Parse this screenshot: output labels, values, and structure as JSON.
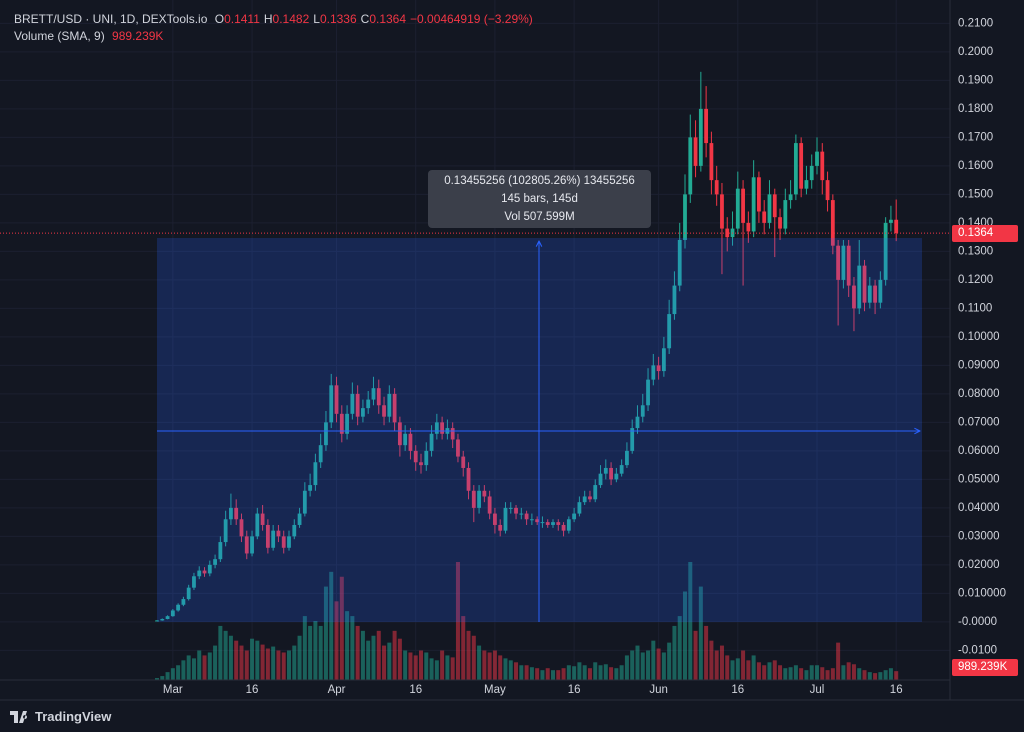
{
  "chart_data": {
    "type": "candlestick",
    "title": "BRETT/USD · UNI, 1D, DEXTools.io",
    "ohlc_legend": [
      {
        "label": "O",
        "value": 0.1411
      },
      {
        "label": "H",
        "value": 0.1482
      },
      {
        "label": "L",
        "value": 0.1336
      },
      {
        "label": "C",
        "value": 0.1364
      }
    ],
    "change": "−0.00464919 (−3.29%)",
    "volume_legend": {
      "label": "Volume (SMA, 9)",
      "value": "989.239K"
    },
    "last_price": 0.1364,
    "last_volume_sma": "989.239K",
    "measure": [
      "0.13455256 (102805.26%) 13455256",
      "145 bars, 145d",
      "Vol 507.599M"
    ],
    "brand": "TradingView",
    "up_color": "#22ab94",
    "down_color": "#f23645",
    "grid": true,
    "ylim": [
      -0.0204,
      0.2154
    ],
    "yticks": [
      {
        "value": 0.21,
        "label": "0.2100"
      },
      {
        "value": 0.2,
        "label": "0.2000"
      },
      {
        "value": 0.19,
        "label": "0.1900"
      },
      {
        "value": 0.18,
        "label": "0.1800"
      },
      {
        "value": 0.17,
        "label": "0.1700"
      },
      {
        "value": 0.16,
        "label": "0.1600"
      },
      {
        "value": 0.15,
        "label": "0.1500"
      },
      {
        "value": 0.14,
        "label": "0.1400"
      },
      {
        "value": 0.13,
        "label": "0.1300"
      },
      {
        "value": 0.12,
        "label": "0.1200"
      },
      {
        "value": 0.11,
        "label": "0.1100"
      },
      {
        "value": 0.1,
        "label": "0.10000"
      },
      {
        "value": 0.09,
        "label": "0.09000"
      },
      {
        "value": 0.08,
        "label": "0.08000"
      },
      {
        "value": 0.07,
        "label": "0.07000"
      },
      {
        "value": 0.06,
        "label": "0.06000"
      },
      {
        "value": 0.05,
        "label": "0.05000"
      },
      {
        "value": 0.04,
        "label": "0.04000"
      },
      {
        "value": 0.03,
        "label": "0.03000"
      },
      {
        "value": 0.02,
        "label": "0.02000"
      },
      {
        "value": 0.01,
        "label": "0.010000"
      },
      {
        "value": 0,
        "label": "-0.0000"
      },
      {
        "value": -0.01,
        "label": "-0.0100"
      }
    ],
    "xticks": [
      {
        "value": "Mar 1",
        "label": "Mar"
      },
      {
        "value": "Mar 16",
        "label": "16"
      },
      {
        "value": "Apr 1",
        "label": "Apr"
      },
      {
        "value": "Apr 16",
        "label": "16"
      },
      {
        "value": "May 1",
        "label": "May"
      },
      {
        "value": "May 16",
        "label": "16"
      },
      {
        "value": "Jun 1",
        "label": "Jun"
      },
      {
        "value": "Jun 16",
        "label": "16"
      },
      {
        "value": "Jul 1",
        "label": "Jul"
      },
      {
        "value": "Jul 16",
        "label": "16"
      }
    ],
    "x": [
      "Feb 27",
      "Feb 28",
      "Feb 29",
      "Mar 1",
      "Mar 2",
      "Mar 3",
      "Mar 4",
      "Mar 5",
      "Mar 6",
      "Mar 7",
      "Mar 8",
      "Mar 9",
      "Mar 10",
      "Mar 11",
      "Mar 12",
      "Mar 13",
      "Mar 14",
      "Mar 15",
      "Mar 16",
      "Mar 17",
      "Mar 18",
      "Mar 19",
      "Mar 20",
      "Mar 21",
      "Mar 22",
      "Mar 23",
      "Mar 24",
      "Mar 25",
      "Mar 26",
      "Mar 27",
      "Mar 28",
      "Mar 29",
      "Mar 30",
      "Mar 31",
      "Apr 1",
      "Apr 2",
      "Apr 3",
      "Apr 4",
      "Apr 5",
      "Apr 6",
      "Apr 7",
      "Apr 8",
      "Apr 9",
      "Apr 10",
      "Apr 11",
      "Apr 12",
      "Apr 13",
      "Apr 14",
      "Apr 15",
      "Apr 16",
      "Apr 17",
      "Apr 18",
      "Apr 19",
      "Apr 20",
      "Apr 21",
      "Apr 22",
      "Apr 23",
      "Apr 24",
      "Apr 25",
      "Apr 26",
      "Apr 27",
      "Apr 28",
      "Apr 29",
      "Apr 30",
      "May 1",
      "May 2",
      "May 3",
      "May 4",
      "May 5",
      "May 6",
      "May 7",
      "May 8",
      "May 9",
      "May 10",
      "May 11",
      "May 12",
      "May 13",
      "May 14",
      "May 15",
      "May 16",
      "May 17",
      "May 18",
      "May 19",
      "May 20",
      "May 21",
      "May 22",
      "May 23",
      "May 24",
      "May 25",
      "May 26",
      "May 27",
      "May 28",
      "May 29",
      "May 30",
      "May 31",
      "Jun 1",
      "Jun 2",
      "Jun 3",
      "Jun 4",
      "Jun 5",
      "Jun 6",
      "Jun 7",
      "Jun 8",
      "Jun 9",
      "Jun 10",
      "Jun 11",
      "Jun 12",
      "Jun 13",
      "Jun 14",
      "Jun 15",
      "Jun 16",
      "Jun 17",
      "Jun 18",
      "Jun 19",
      "Jun 20",
      "Jun 21",
      "Jun 22",
      "Jun 23",
      "Jun 24",
      "Jun 25",
      "Jun 26",
      "Jun 27",
      "Jun 28",
      "Jun 29",
      "Jun 30",
      "Jul 1",
      "Jul 2",
      "Jul 3",
      "Jul 4",
      "Jul 5",
      "Jul 6",
      "Jul 7",
      "Jul 8",
      "Jul 9",
      "Jul 10",
      "Jul 11",
      "Jul 12",
      "Jul 13",
      "Jul 14",
      "Jul 15",
      "Jul 16"
    ],
    "open": [
      0.0003,
      0.0005,
      0.001,
      0.002,
      0.004,
      0.006,
      0.008,
      0.012,
      0.016,
      0.018,
      0.017,
      0.02,
      0.022,
      0.028,
      0.036,
      0.04,
      0.036,
      0.03,
      0.024,
      0.03,
      0.038,
      0.034,
      0.026,
      0.032,
      0.03,
      0.026,
      0.03,
      0.034,
      0.038,
      0.046,
      0.048,
      0.056,
      0.062,
      0.07,
      0.083,
      0.073,
      0.066,
      0.073,
      0.08,
      0.072,
      0.075,
      0.078,
      0.082,
      0.076,
      0.072,
      0.08,
      0.07,
      0.062,
      0.066,
      0.06,
      0.056,
      0.055,
      0.06,
      0.066,
      0.07,
      0.066,
      0.068,
      0.064,
      0.058,
      0.054,
      0.046,
      0.04,
      0.046,
      0.044,
      0.038,
      0.034,
      0.032,
      0.04,
      0.04,
      0.038,
      0.038,
      0.036,
      0.036,
      0.035,
      0.035,
      0.034,
      0.035,
      0.034,
      0.032,
      0.036,
      0.038,
      0.042,
      0.044,
      0.043,
      0.048,
      0.052,
      0.054,
      0.05,
      0.052,
      0.055,
      0.06,
      0.068,
      0.072,
      0.076,
      0.085,
      0.09,
      0.088,
      0.096,
      0.108,
      0.118,
      0.134,
      0.15,
      0.17,
      0.16,
      0.18,
      0.168,
      0.155,
      0.15,
      0.138,
      0.135,
      0.138,
      0.152,
      0.14,
      0.137,
      0.156,
      0.144,
      0.14,
      0.15,
      0.142,
      0.138,
      0.148,
      0.15,
      0.168,
      0.152,
      0.155,
      0.16,
      0.165,
      0.155,
      0.148,
      0.132,
      0.12,
      0.132,
      0.118,
      0.11,
      0.125,
      0.112,
      0.118,
      0.112,
      0.12,
      0.14,
      0.1411
    ],
    "high": [
      0.0006,
      0.0012,
      0.0023,
      0.0045,
      0.0065,
      0.0088,
      0.013,
      0.0172,
      0.0195,
      0.0192,
      0.0215,
      0.0236,
      0.03,
      0.039,
      0.045,
      0.043,
      0.038,
      0.032,
      0.032,
      0.04,
      0.041,
      0.036,
      0.034,
      0.034,
      0.032,
      0.032,
      0.036,
      0.04,
      0.049,
      0.052,
      0.059,
      0.066,
      0.074,
      0.087,
      0.086,
      0.076,
      0.076,
      0.084,
      0.083,
      0.078,
      0.081,
      0.086,
      0.085,
      0.079,
      0.083,
      0.082,
      0.072,
      0.069,
      0.068,
      0.062,
      0.059,
      0.063,
      0.069,
      0.073,
      0.072,
      0.071,
      0.07,
      0.066,
      0.06,
      0.056,
      0.048,
      0.048,
      0.048,
      0.046,
      0.04,
      0.036,
      0.042,
      0.042,
      0.041,
      0.04,
      0.039,
      0.038,
      0.037,
      0.037,
      0.036,
      0.036,
      0.036,
      0.035,
      0.037,
      0.04,
      0.044,
      0.046,
      0.046,
      0.05,
      0.055,
      0.057,
      0.056,
      0.054,
      0.057,
      0.063,
      0.071,
      0.076,
      0.08,
      0.089,
      0.094,
      0.093,
      0.1,
      0.113,
      0.123,
      0.14,
      0.157,
      0.178,
      0.176,
      0.193,
      0.188,
      0.172,
      0.16,
      0.154,
      0.142,
      0.144,
      0.158,
      0.155,
      0.144,
      0.162,
      0.158,
      0.148,
      0.155,
      0.152,
      0.145,
      0.152,
      0.155,
      0.171,
      0.17,
      0.16,
      0.164,
      0.17,
      0.168,
      0.158,
      0.15,
      0.134,
      0.134,
      0.134,
      0.121,
      0.134,
      0.127,
      0.121,
      0.12,
      0.123,
      0.142,
      0.146,
      0.1482
    ],
    "low": [
      0.0002,
      0.0004,
      0.0009,
      0.0018,
      0.0036,
      0.0055,
      0.0075,
      0.0112,
      0.015,
      0.0158,
      0.016,
      0.0188,
      0.021,
      0.0265,
      0.034,
      0.034,
      0.028,
      0.022,
      0.023,
      0.029,
      0.032,
      0.024,
      0.025,
      0.028,
      0.024,
      0.025,
      0.029,
      0.033,
      0.037,
      0.044,
      0.046,
      0.054,
      0.06,
      0.068,
      0.07,
      0.063,
      0.064,
      0.071,
      0.069,
      0.07,
      0.073,
      0.076,
      0.073,
      0.069,
      0.07,
      0.067,
      0.058,
      0.06,
      0.057,
      0.053,
      0.052,
      0.053,
      0.058,
      0.064,
      0.064,
      0.064,
      0.061,
      0.056,
      0.051,
      0.043,
      0.035,
      0.038,
      0.042,
      0.036,
      0.031,
      0.03,
      0.031,
      0.038,
      0.036,
      0.036,
      0.034,
      0.034,
      0.034,
      0.033,
      0.033,
      0.033,
      0.032,
      0.03,
      0.031,
      0.035,
      0.037,
      0.041,
      0.042,
      0.042,
      0.047,
      0.05,
      0.048,
      0.049,
      0.051,
      0.054,
      0.059,
      0.066,
      0.07,
      0.074,
      0.083,
      0.085,
      0.086,
      0.094,
      0.106,
      0.116,
      0.131,
      0.147,
      0.156,
      0.158,
      0.163,
      0.15,
      0.146,
      0.122,
      0.13,
      0.132,
      0.136,
      0.118,
      0.133,
      0.135,
      0.14,
      0.136,
      0.138,
      0.128,
      0.134,
      0.136,
      0.145,
      0.148,
      0.149,
      0.15,
      0.152,
      0.157,
      0.15,
      0.144,
      0.129,
      0.104,
      0.117,
      0.114,
      0.102,
      0.108,
      0.109,
      0.11,
      0.108,
      0.11,
      0.118,
      0.137,
      0.1336
    ],
    "close": [
      0.0005,
      0.001,
      0.002,
      0.004,
      0.006,
      0.008,
      0.012,
      0.016,
      0.018,
      0.017,
      0.02,
      0.022,
      0.028,
      0.036,
      0.04,
      0.036,
      0.03,
      0.024,
      0.03,
      0.038,
      0.034,
      0.026,
      0.032,
      0.03,
      0.026,
      0.03,
      0.034,
      0.038,
      0.046,
      0.048,
      0.056,
      0.062,
      0.07,
      0.083,
      0.073,
      0.066,
      0.073,
      0.08,
      0.072,
      0.075,
      0.078,
      0.082,
      0.076,
      0.072,
      0.08,
      0.07,
      0.062,
      0.066,
      0.06,
      0.056,
      0.055,
      0.06,
      0.066,
      0.07,
      0.066,
      0.068,
      0.064,
      0.058,
      0.054,
      0.046,
      0.04,
      0.046,
      0.044,
      0.038,
      0.034,
      0.032,
      0.04,
      0.04,
      0.038,
      0.038,
      0.036,
      0.036,
      0.035,
      0.035,
      0.034,
      0.035,
      0.034,
      0.032,
      0.036,
      0.038,
      0.042,
      0.044,
      0.043,
      0.048,
      0.052,
      0.054,
      0.05,
      0.052,
      0.055,
      0.06,
      0.068,
      0.072,
      0.076,
      0.085,
      0.09,
      0.088,
      0.096,
      0.108,
      0.118,
      0.134,
      0.15,
      0.17,
      0.16,
      0.18,
      0.168,
      0.155,
      0.15,
      0.138,
      0.135,
      0.138,
      0.152,
      0.14,
      0.137,
      0.156,
      0.144,
      0.14,
      0.15,
      0.142,
      0.138,
      0.148,
      0.15,
      0.168,
      0.152,
      0.155,
      0.16,
      0.165,
      0.155,
      0.148,
      0.132,
      0.12,
      0.132,
      0.118,
      0.11,
      0.125,
      0.112,
      0.118,
      0.112,
      0.12,
      0.14,
      0.1411,
      0.1364
    ],
    "volume": [
      0.2,
      0.4,
      0.8,
      1.2,
      1.5,
      2.0,
      2.5,
      2.2,
      3.0,
      2.5,
      2.8,
      3.5,
      5.5,
      5.0,
      4.5,
      4.0,
      3.5,
      3.0,
      4.2,
      4.0,
      3.6,
      3.2,
      3.4,
      3.0,
      2.8,
      3.0,
      3.5,
      4.5,
      6.5,
      5.5,
      6.0,
      5.5,
      9.5,
      11.0,
      8.0,
      10.5,
      7.0,
      6.5,
      5.5,
      5.0,
      4.0,
      4.5,
      5.0,
      3.5,
      3.8,
      5.0,
      4.2,
      3.0,
      2.8,
      2.5,
      3.0,
      2.8,
      2.2,
      2.0,
      3.0,
      2.5,
      2.3,
      12.0,
      6.5,
      5.0,
      4.5,
      3.5,
      3.0,
      2.8,
      3.0,
      2.5,
      2.2,
      2.0,
      1.8,
      1.5,
      1.5,
      1.3,
      1.2,
      1.0,
      1.2,
      1.0,
      1.0,
      1.2,
      1.5,
      1.4,
      1.8,
      1.5,
      1.2,
      1.8,
      1.5,
      1.6,
      1.3,
      1.2,
      1.5,
      2.5,
      3.0,
      3.5,
      2.8,
      3.0,
      4.0,
      3.2,
      2.8,
      3.8,
      5.5,
      6.5,
      9.0,
      12.0,
      5.0,
      9.5,
      5.5,
      4.0,
      3.0,
      3.5,
      2.5,
      2.0,
      2.2,
      3.0,
      2.0,
      2.5,
      1.8,
      1.5,
      1.8,
      2.0,
      1.5,
      1.2,
      1.3,
      1.5,
      1.2,
      1.0,
      1.5,
      1.5,
      1.3,
      1.0,
      1.2,
      3.8,
      1.5,
      1.8,
      1.6,
      1.2,
      1.0,
      0.8,
      0.7,
      0.8,
      1.0,
      1.2,
      0.9
    ]
  }
}
